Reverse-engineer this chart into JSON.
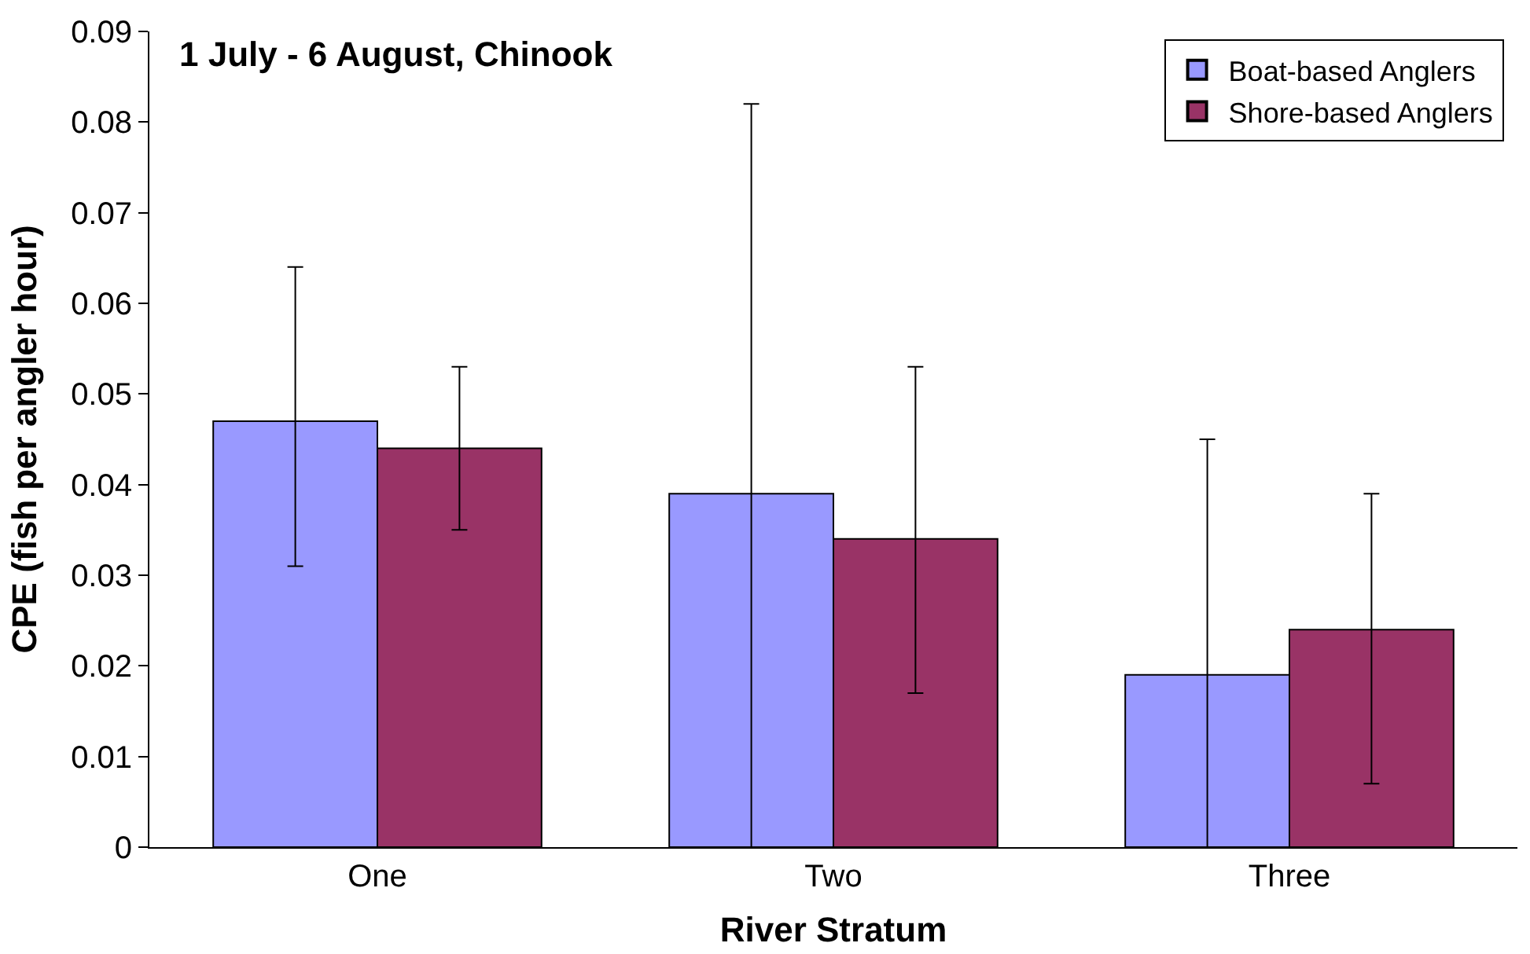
{
  "chart_data": {
    "type": "bar",
    "title": "1 July - 6 August, Chinook",
    "xlabel": "River Stratum",
    "ylabel": "CPE (fish per angler hour)",
    "categories": [
      "One",
      "Two",
      "Three"
    ],
    "series": [
      {
        "name": "Boat-based Anglers",
        "color": "#9999ff",
        "values": [
          0.047,
          0.039,
          0.019
        ],
        "errors": [
          [
            0.031,
            0.064
          ],
          [
            0.0,
            0.082
          ],
          [
            0.0,
            0.045
          ]
        ]
      },
      {
        "name": "Shore-based Anglers",
        "color": "#993366",
        "values": [
          0.044,
          0.034,
          0.024
        ],
        "errors": [
          [
            0.035,
            0.053
          ],
          [
            0.017,
            0.053
          ],
          [
            0.007,
            0.039
          ]
        ]
      }
    ],
    "ylim": [
      0,
      0.09
    ],
    "yticks": [
      0,
      0.01,
      0.02,
      0.03,
      0.04,
      0.05,
      0.06,
      0.07,
      0.08,
      0.09
    ],
    "legend": "top right"
  }
}
